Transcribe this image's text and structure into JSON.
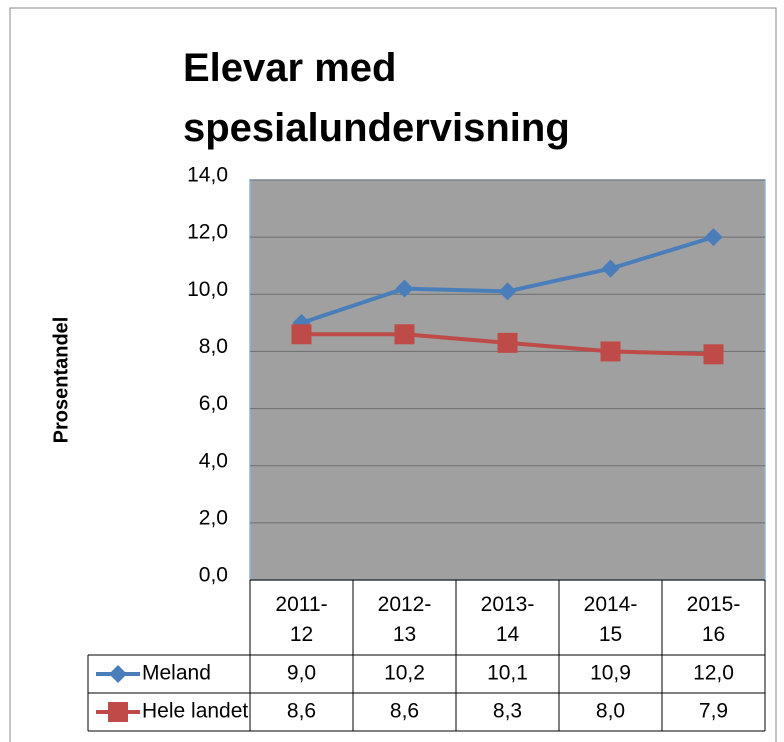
{
  "chart_data": {
    "type": "line",
    "title": "Elevar med spesialundervisning",
    "y_label": "Prosentandel",
    "categories": [
      "2011-12",
      "2012-13",
      "2013-14",
      "2014-15",
      "2015-16"
    ],
    "series": [
      {
        "name": "Meland",
        "color": "#4a7ebb",
        "marker": "diamond",
        "values": [
          9.0,
          10.2,
          10.1,
          10.9,
          12.0
        ],
        "value_labels": [
          "9,0",
          "10,2",
          "10,1",
          "10,9",
          "12,0"
        ]
      },
      {
        "name": "Hele landet",
        "color": "#be4b48",
        "marker": "square",
        "values": [
          8.6,
          8.6,
          8.3,
          8.0,
          7.9
        ],
        "value_labels": [
          "8,6",
          "8,6",
          "8,3",
          "8,0",
          "7,9"
        ]
      }
    ],
    "ylim": [
      0,
      14
    ],
    "yticks": [
      {
        "value": 0,
        "label": "0,0"
      },
      {
        "value": 2,
        "label": "2,0"
      },
      {
        "value": 4,
        "label": "4,0"
      },
      {
        "value": 6,
        "label": "6,0"
      },
      {
        "value": 8,
        "label": "8,0"
      },
      {
        "value": 10,
        "label": "10,0"
      },
      {
        "value": 12,
        "label": "12,0"
      },
      {
        "value": 14,
        "label": "14,0"
      }
    ],
    "grid": true,
    "plot_background": "#a0a0a0"
  }
}
